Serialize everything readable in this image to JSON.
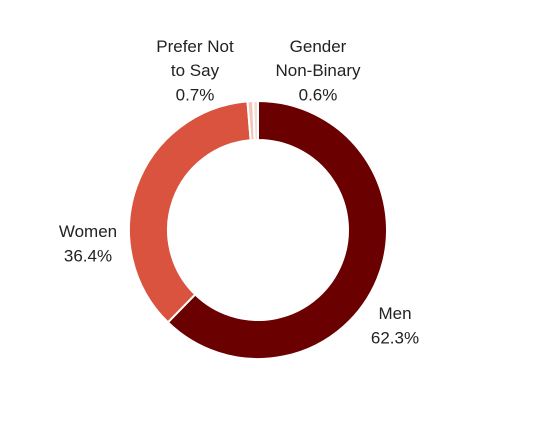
{
  "chart_data": {
    "type": "donut",
    "categories": [
      "Men",
      "Women",
      "Prefer Not to Say",
      "Gender Non-Binary"
    ],
    "values": [
      62.3,
      36.4,
      0.7,
      0.6
    ],
    "value_labels": [
      "62.3%",
      "36.4%",
      "0.7%",
      "0.6%"
    ],
    "colors": [
      "#6b0000",
      "#d9533f",
      "#f2c4b8",
      "#f5ddd5"
    ]
  }
}
